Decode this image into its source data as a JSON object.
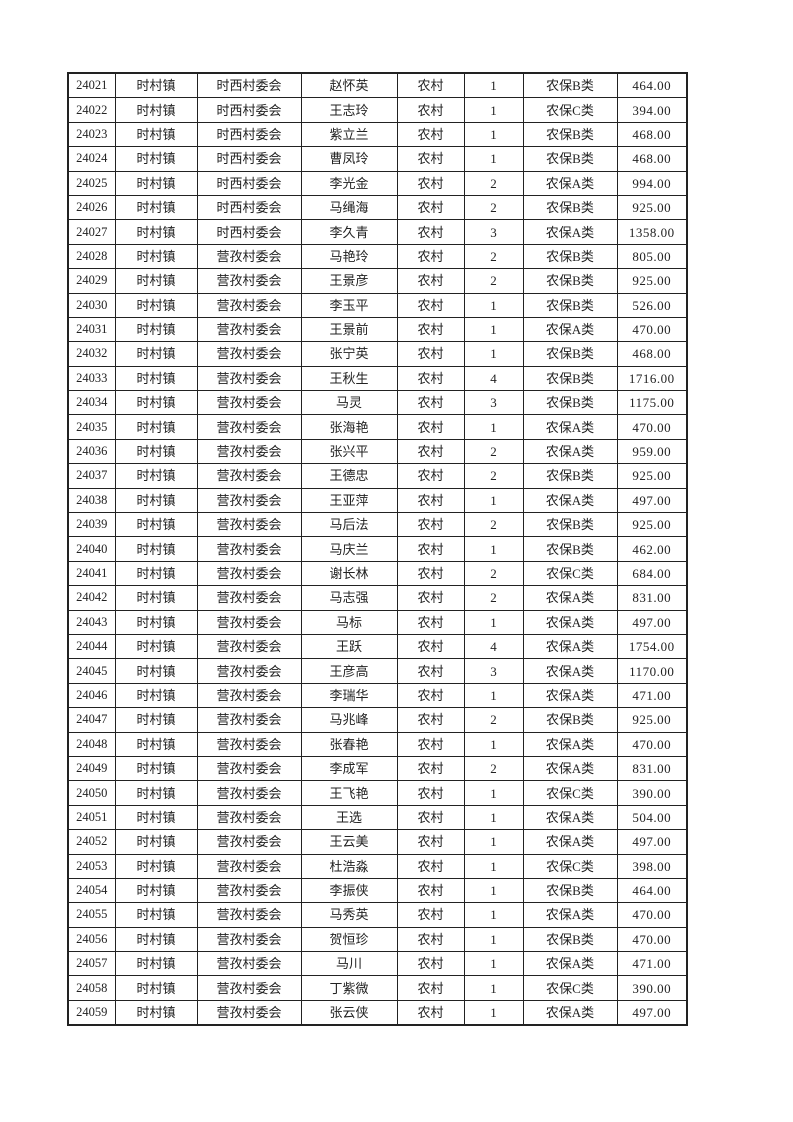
{
  "table": {
    "rows": [
      [
        "24021",
        "时村镇",
        "时西村委会",
        "赵怀英",
        "农村",
        "1",
        "农保B类",
        "464.00"
      ],
      [
        "24022",
        "时村镇",
        "时西村委会",
        "王志玲",
        "农村",
        "1",
        "农保C类",
        "394.00"
      ],
      [
        "24023",
        "时村镇",
        "时西村委会",
        "紫立兰",
        "农村",
        "1",
        "农保B类",
        "468.00"
      ],
      [
        "24024",
        "时村镇",
        "时西村委会",
        "曹凤玲",
        "农村",
        "1",
        "农保B类",
        "468.00"
      ],
      [
        "24025",
        "时村镇",
        "时西村委会",
        "李光金",
        "农村",
        "2",
        "农保A类",
        "994.00"
      ],
      [
        "24026",
        "时村镇",
        "时西村委会",
        "马绳海",
        "农村",
        "2",
        "农保B类",
        "925.00"
      ],
      [
        "24027",
        "时村镇",
        "时西村委会",
        "李久青",
        "农村",
        "3",
        "农保A类",
        "1358.00"
      ],
      [
        "24028",
        "时村镇",
        "营孜村委会",
        "马艳玲",
        "农村",
        "2",
        "农保B类",
        "805.00"
      ],
      [
        "24029",
        "时村镇",
        "营孜村委会",
        "王景彦",
        "农村",
        "2",
        "农保B类",
        "925.00"
      ],
      [
        "24030",
        "时村镇",
        "营孜村委会",
        "李玉平",
        "农村",
        "1",
        "农保B类",
        "526.00"
      ],
      [
        "24031",
        "时村镇",
        "营孜村委会",
        "王景前",
        "农村",
        "1",
        "农保A类",
        "470.00"
      ],
      [
        "24032",
        "时村镇",
        "营孜村委会",
        "张宁英",
        "农村",
        "1",
        "农保B类",
        "468.00"
      ],
      [
        "24033",
        "时村镇",
        "营孜村委会",
        "王秋生",
        "农村",
        "4",
        "农保B类",
        "1716.00"
      ],
      [
        "24034",
        "时村镇",
        "营孜村委会",
        "马灵",
        "农村",
        "3",
        "农保B类",
        "1175.00"
      ],
      [
        "24035",
        "时村镇",
        "营孜村委会",
        "张海艳",
        "农村",
        "1",
        "农保A类",
        "470.00"
      ],
      [
        "24036",
        "时村镇",
        "营孜村委会",
        "张兴平",
        "农村",
        "2",
        "农保A类",
        "959.00"
      ],
      [
        "24037",
        "时村镇",
        "营孜村委会",
        "王德忠",
        "农村",
        "2",
        "农保B类",
        "925.00"
      ],
      [
        "24038",
        "时村镇",
        "营孜村委会",
        "王亚萍",
        "农村",
        "1",
        "农保A类",
        "497.00"
      ],
      [
        "24039",
        "时村镇",
        "营孜村委会",
        "马后法",
        "农村",
        "2",
        "农保B类",
        "925.00"
      ],
      [
        "24040",
        "时村镇",
        "营孜村委会",
        "马庆兰",
        "农村",
        "1",
        "农保B类",
        "462.00"
      ],
      [
        "24041",
        "时村镇",
        "营孜村委会",
        "谢长林",
        "农村",
        "2",
        "农保C类",
        "684.00"
      ],
      [
        "24042",
        "时村镇",
        "营孜村委会",
        "马志强",
        "农村",
        "2",
        "农保A类",
        "831.00"
      ],
      [
        "24043",
        "时村镇",
        "营孜村委会",
        "马标",
        "农村",
        "1",
        "农保A类",
        "497.00"
      ],
      [
        "24044",
        "时村镇",
        "营孜村委会",
        "王跃",
        "农村",
        "4",
        "农保A类",
        "1754.00"
      ],
      [
        "24045",
        "时村镇",
        "营孜村委会",
        "王彦高",
        "农村",
        "3",
        "农保A类",
        "1170.00"
      ],
      [
        "24046",
        "时村镇",
        "营孜村委会",
        "李瑞华",
        "农村",
        "1",
        "农保A类",
        "471.00"
      ],
      [
        "24047",
        "时村镇",
        "营孜村委会",
        "马兆峰",
        "农村",
        "2",
        "农保B类",
        "925.00"
      ],
      [
        "24048",
        "时村镇",
        "营孜村委会",
        "张春艳",
        "农村",
        "1",
        "农保A类",
        "470.00"
      ],
      [
        "24049",
        "时村镇",
        "营孜村委会",
        "李成军",
        "农村",
        "2",
        "农保A类",
        "831.00"
      ],
      [
        "24050",
        "时村镇",
        "营孜村委会",
        "王飞艳",
        "农村",
        "1",
        "农保C类",
        "390.00"
      ],
      [
        "24051",
        "时村镇",
        "营孜村委会",
        "王选",
        "农村",
        "1",
        "农保A类",
        "504.00"
      ],
      [
        "24052",
        "时村镇",
        "营孜村委会",
        "王云美",
        "农村",
        "1",
        "农保A类",
        "497.00"
      ],
      [
        "24053",
        "时村镇",
        "营孜村委会",
        "杜浩淼",
        "农村",
        "1",
        "农保C类",
        "398.00"
      ],
      [
        "24054",
        "时村镇",
        "营孜村委会",
        "李振侠",
        "农村",
        "1",
        "农保B类",
        "464.00"
      ],
      [
        "24055",
        "时村镇",
        "营孜村委会",
        "马秀英",
        "农村",
        "1",
        "农保A类",
        "470.00"
      ],
      [
        "24056",
        "时村镇",
        "营孜村委会",
        "贺恒珍",
        "农村",
        "1",
        "农保B类",
        "470.00"
      ],
      [
        "24057",
        "时村镇",
        "营孜村委会",
        "马川",
        "农村",
        "1",
        "农保A类",
        "471.00"
      ],
      [
        "24058",
        "时村镇",
        "营孜村委会",
        "丁紫微",
        "农村",
        "1",
        "农保C类",
        "390.00"
      ],
      [
        "24059",
        "时村镇",
        "营孜村委会",
        "张云侠",
        "农村",
        "1",
        "农保A类",
        "497.00"
      ]
    ]
  }
}
